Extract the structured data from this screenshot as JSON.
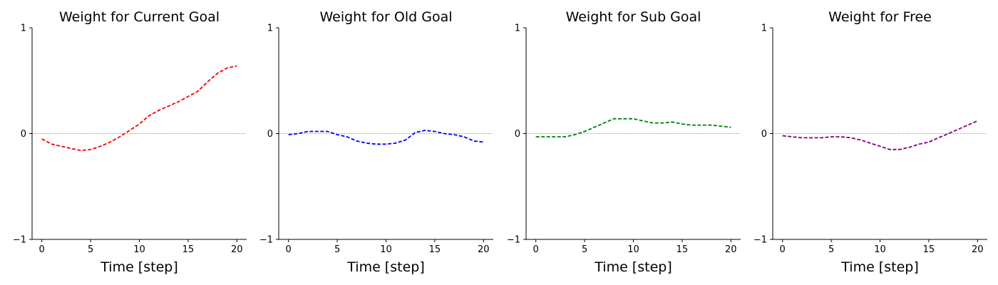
{
  "chart_data": [
    {
      "type": "line",
      "title": "Weight for Current Goal",
      "xlabel": "Time [step]",
      "ylabel": "",
      "xlim": [
        -1,
        21
      ],
      "ylim": [
        -1,
        1
      ],
      "xticks": [
        0,
        5,
        10,
        15,
        20
      ],
      "yticks": [
        -1,
        0,
        1
      ],
      "zero_line": true,
      "grid": false,
      "series": [
        {
          "color": "#ff0000",
          "x": [
            0,
            1,
            2,
            3,
            4,
            5,
            6,
            7,
            8,
            9,
            10,
            11,
            12,
            13,
            14,
            15,
            16,
            17,
            18,
            19,
            20
          ],
          "y": [
            -0.05,
            -0.1,
            -0.12,
            -0.14,
            -0.16,
            -0.15,
            -0.12,
            -0.08,
            -0.03,
            0.03,
            0.09,
            0.17,
            0.22,
            0.26,
            0.3,
            0.35,
            0.4,
            0.49,
            0.57,
            0.62,
            0.64
          ]
        }
      ]
    },
    {
      "type": "line",
      "title": "Weight for Old Goal",
      "xlabel": "Time [step]",
      "ylabel": "",
      "xlim": [
        -1,
        21
      ],
      "ylim": [
        -1,
        1
      ],
      "xticks": [
        0,
        5,
        10,
        15,
        20
      ],
      "yticks": [
        -1,
        0,
        1
      ],
      "zero_line": true,
      "grid": false,
      "series": [
        {
          "color": "#0000ff",
          "x": [
            0,
            1,
            2,
            3,
            4,
            5,
            6,
            7,
            8,
            9,
            10,
            11,
            12,
            13,
            14,
            15,
            16,
            17,
            18,
            19,
            20
          ],
          "y": [
            -0.01,
            0.0,
            0.02,
            0.02,
            0.02,
            -0.01,
            -0.03,
            -0.07,
            -0.09,
            -0.1,
            -0.1,
            -0.09,
            -0.06,
            0.01,
            0.03,
            0.02,
            0.0,
            -0.01,
            -0.03,
            -0.07,
            -0.08
          ]
        }
      ]
    },
    {
      "type": "line",
      "title": "Weight for Sub Goal",
      "xlabel": "Time [step]",
      "ylabel": "",
      "xlim": [
        -1,
        21
      ],
      "ylim": [
        -1,
        1
      ],
      "xticks": [
        0,
        5,
        10,
        15,
        20
      ],
      "yticks": [
        -1,
        0,
        1
      ],
      "zero_line": true,
      "grid": false,
      "series": [
        {
          "color": "#008000",
          "x": [
            0,
            1,
            2,
            3,
            4,
            5,
            6,
            7,
            8,
            9,
            10,
            11,
            12,
            13,
            14,
            15,
            16,
            17,
            18,
            19,
            20
          ],
          "y": [
            -0.03,
            -0.03,
            -0.03,
            -0.03,
            -0.01,
            0.02,
            0.06,
            0.1,
            0.14,
            0.14,
            0.14,
            0.12,
            0.1,
            0.1,
            0.11,
            0.09,
            0.08,
            0.08,
            0.08,
            0.07,
            0.06
          ]
        }
      ]
    },
    {
      "type": "line",
      "title": "Weight for Free",
      "xlabel": "Time [step]",
      "ylabel": "",
      "xlim": [
        -1,
        21
      ],
      "ylim": [
        -1,
        1
      ],
      "xticks": [
        0,
        5,
        10,
        15,
        20
      ],
      "yticks": [
        -1,
        0,
        1
      ],
      "zero_line": true,
      "grid": false,
      "series": [
        {
          "color": "#800080",
          "x": [
            0,
            1,
            2,
            3,
            4,
            5,
            6,
            7,
            8,
            9,
            10,
            11,
            12,
            13,
            14,
            15,
            16,
            17,
            18,
            19,
            20
          ],
          "y": [
            -0.02,
            -0.03,
            -0.04,
            -0.04,
            -0.04,
            -0.03,
            -0.03,
            -0.04,
            -0.06,
            -0.09,
            -0.12,
            -0.15,
            -0.15,
            -0.13,
            -0.1,
            -0.08,
            -0.04,
            0.0,
            0.04,
            0.08,
            0.12
          ]
        }
      ]
    }
  ]
}
